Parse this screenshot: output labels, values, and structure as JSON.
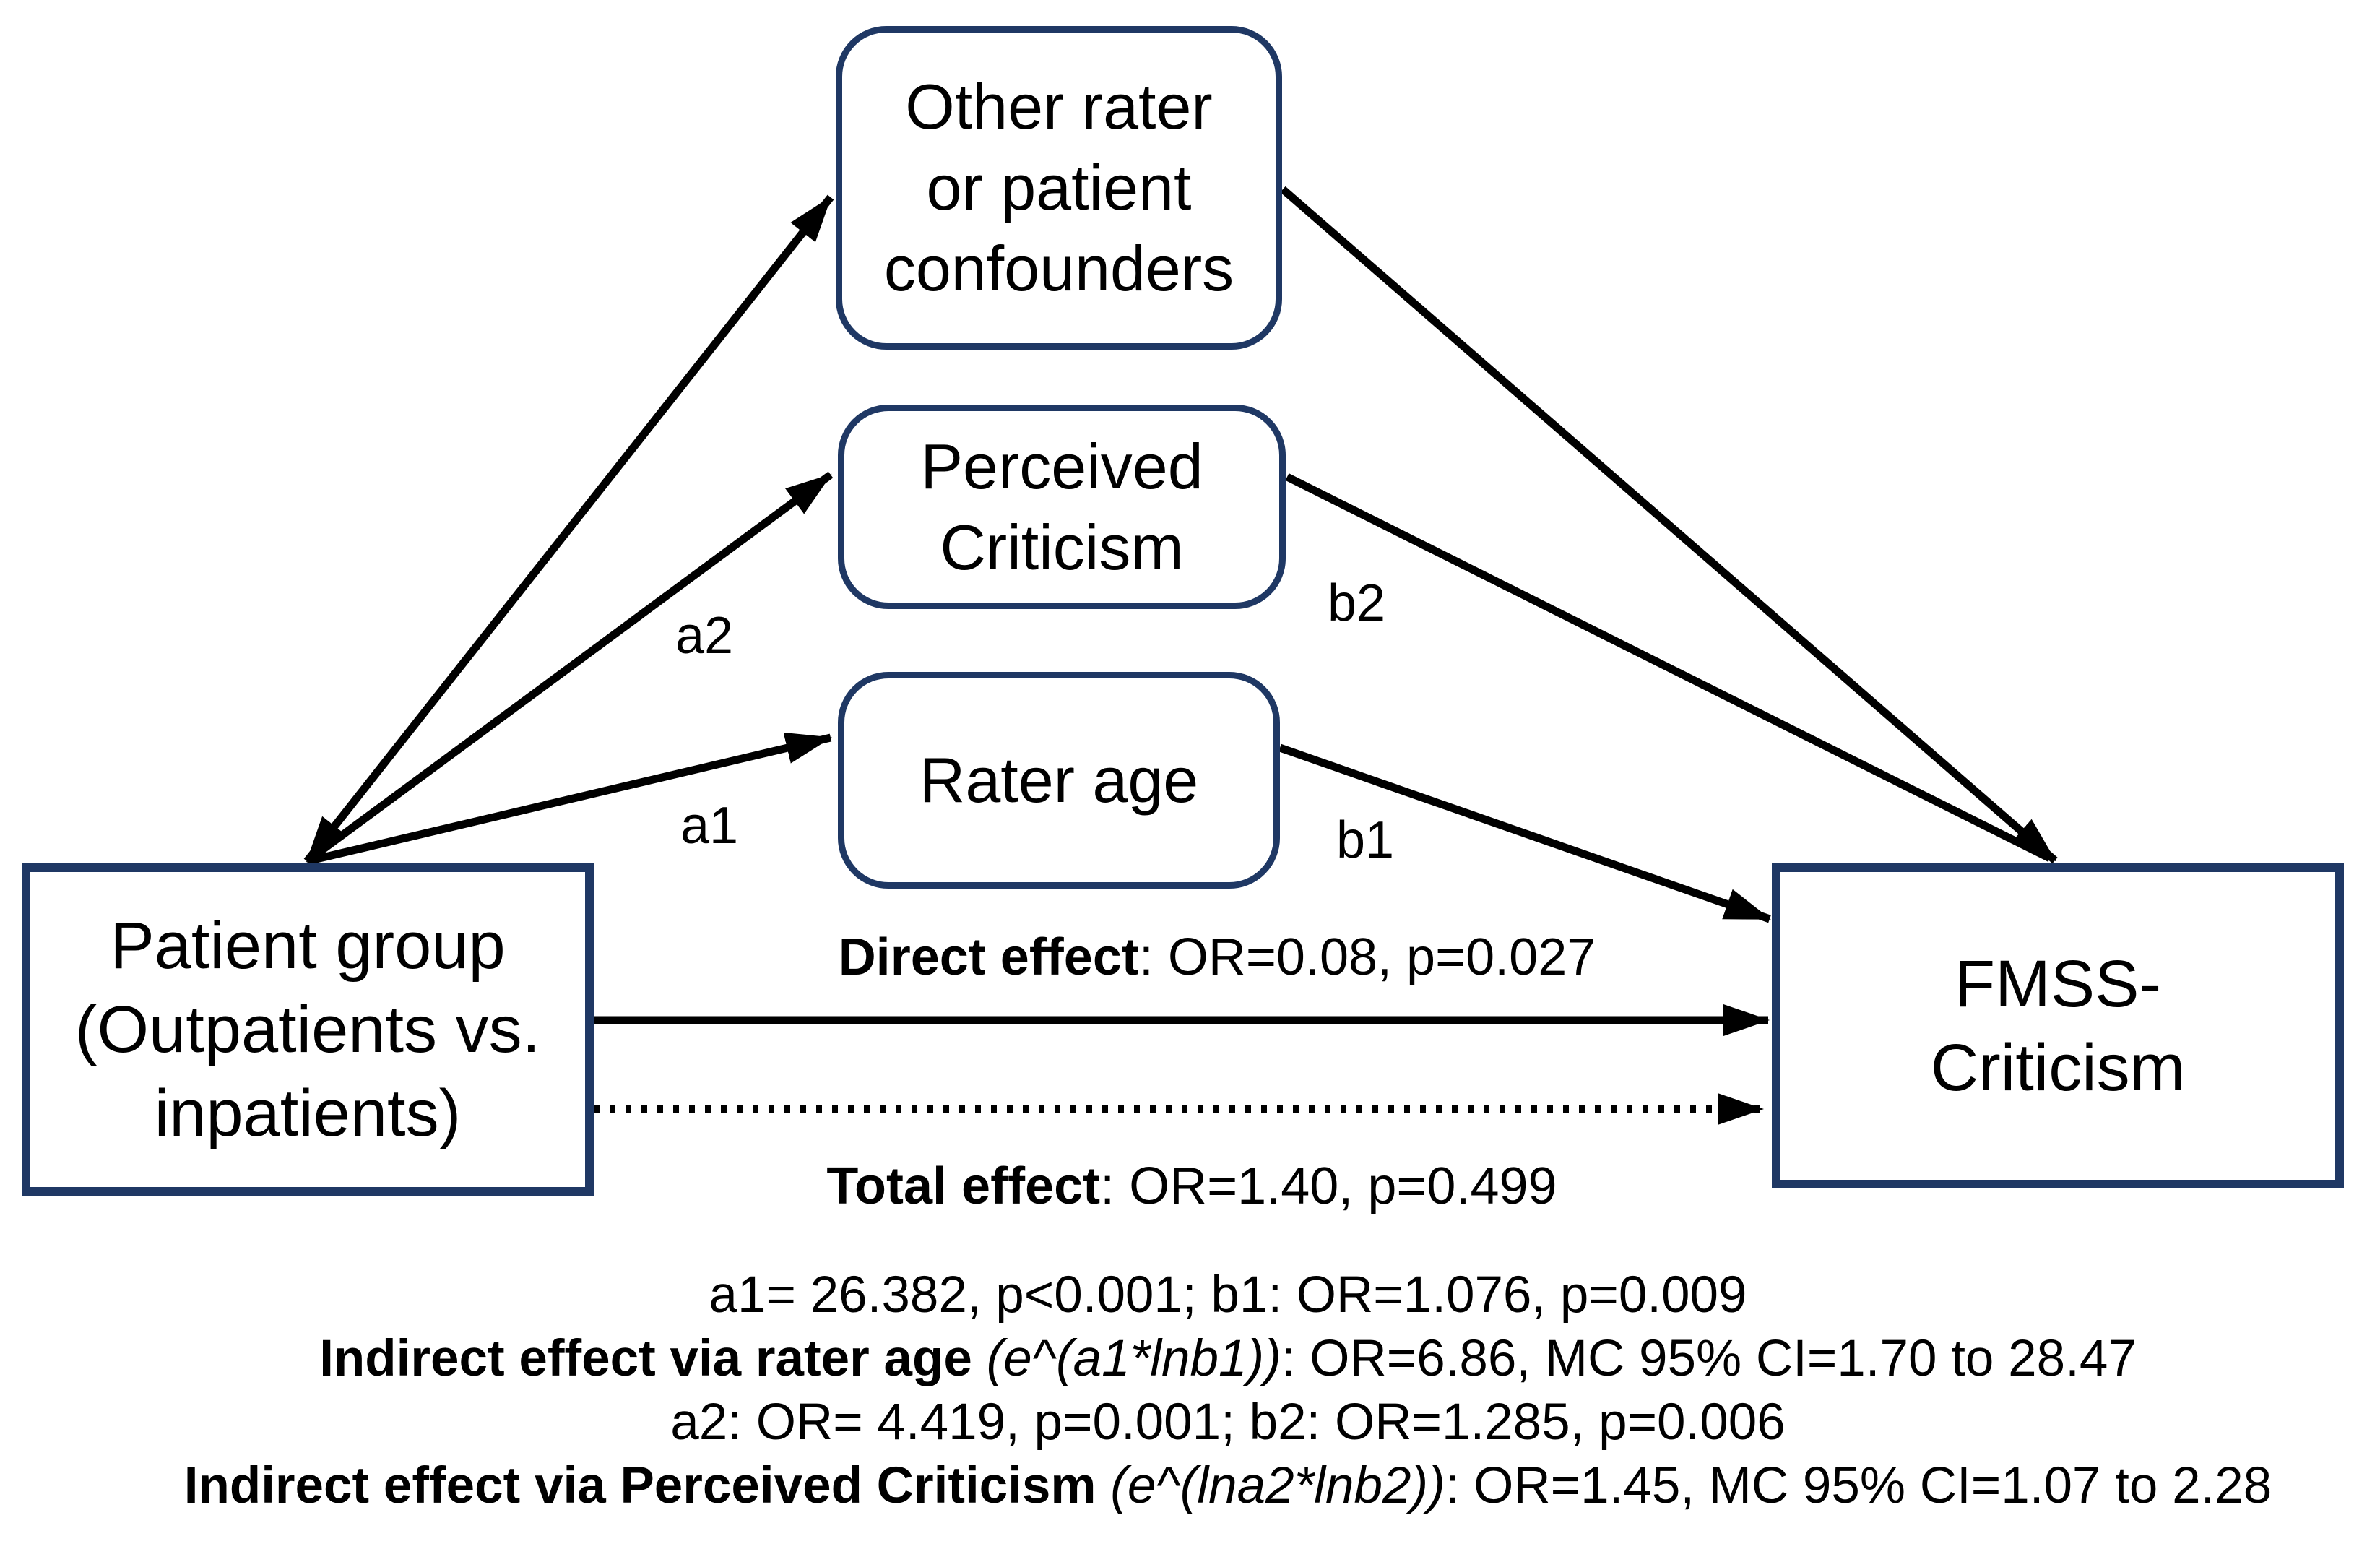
{
  "boxes": {
    "patient_group": "Patient group\n(Outpatients vs.\ninpatients)",
    "fmss_criticism": "FMSS-\nCriticism",
    "confounders": "Other rater\nor patient\nconfounders",
    "perceived_criticism": "Perceived\nCriticism",
    "rater_age": "Rater age"
  },
  "path_labels": {
    "a1": "a1",
    "a2": "a2",
    "b1": "b1",
    "b2": "b2"
  },
  "direct_effect": [
    {
      "t": "Direct effect",
      "s": "bold"
    },
    {
      "t": ": OR=0.08, p=0.027",
      "s": "normal"
    }
  ],
  "total_effect": [
    {
      "t": "Total effect",
      "s": "bold"
    },
    {
      "t": ": OR=1.40, p=0.499",
      "s": "normal"
    }
  ],
  "stat_lines": [
    [
      {
        "t": "a1= 26.382, p<0.001; b1: OR=1.076, p=0.009",
        "s": "normal"
      }
    ],
    [
      {
        "t": "Indirect effect via rater age",
        "s": "bold"
      },
      {
        "t": " ",
        "s": "normal"
      },
      {
        "t": "(e^(a1*lnb1))",
        "s": "italic"
      },
      {
        "t": ": OR=6.86, MC 95% CI=1.70 to 28.47",
        "s": "normal"
      }
    ],
    [
      {
        "t": "a2: OR= 4.419, p=0.001; b2: OR=1.285, p=0.006",
        "s": "normal"
      }
    ],
    [
      {
        "t": "Indirect effect via Perceived Criticism",
        "s": "bold"
      },
      {
        "t": " ",
        "s": "normal"
      },
      {
        "t": "(e^(lna2*lnb2))",
        "s": "italic"
      },
      {
        "t": ": OR=1.45, MC 95% CI=1.07 to 2.28",
        "s": "normal"
      }
    ]
  ],
  "colors": {
    "box_border": "#1f3864",
    "line": "#000000",
    "text": "#000000",
    "background": "#ffffff"
  }
}
